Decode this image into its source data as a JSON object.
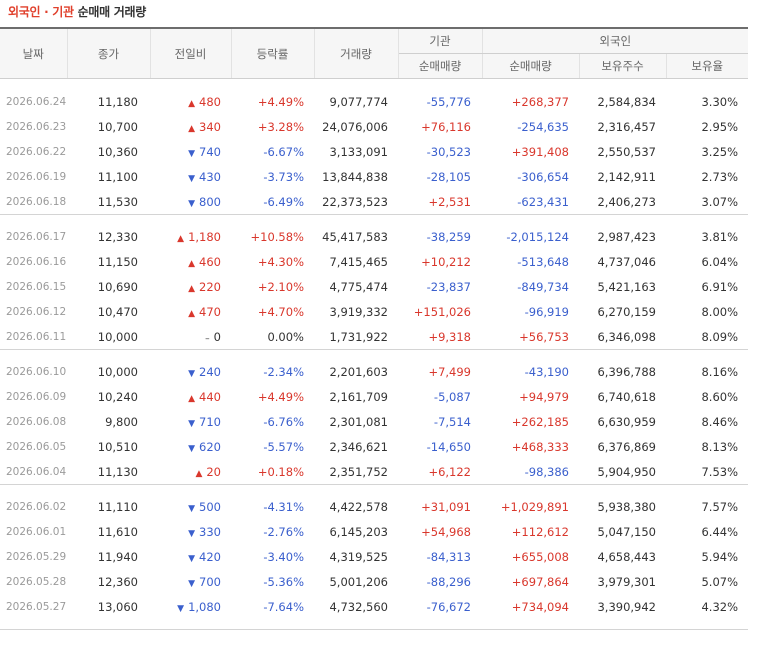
{
  "title": {
    "part1": "외국인 · 기관",
    "part2": "순매매 거래량"
  },
  "headers": {
    "date": "날짜",
    "close": "종가",
    "change": "전일비",
    "rate": "등락률",
    "volume": "거래량",
    "inst_group": "기관",
    "foreign_group": "외국인",
    "inst_net": "순매매량",
    "foreign_net": "순매매량",
    "foreign_shares": "보유주수",
    "foreign_ratio": "보유율"
  },
  "colors": {
    "up": "#d9372c",
    "down": "#3a5fcd",
    "title_accent": "#e0402c"
  },
  "icons": {
    "up": "triangle-up-icon",
    "down": "triangle-down-icon",
    "flat": "dash-icon"
  },
  "groups": [
    {
      "rows": [
        {
          "date": "2026.06.24",
          "close": "11,180",
          "dir": "up",
          "change": "480",
          "rate": "+4.49%",
          "volume": "9,077,774",
          "inst": "-55,776",
          "foreign": "+268,377",
          "shares": "2,584,834",
          "ratio": "3.30%"
        },
        {
          "date": "2026.06.23",
          "close": "10,700",
          "dir": "up",
          "change": "340",
          "rate": "+3.28%",
          "volume": "24,076,006",
          "inst": "+76,116",
          "foreign": "-254,635",
          "shares": "2,316,457",
          "ratio": "2.95%"
        },
        {
          "date": "2026.06.22",
          "close": "10,360",
          "dir": "down",
          "change": "740",
          "rate": "-6.67%",
          "volume": "3,133,091",
          "inst": "-30,523",
          "foreign": "+391,408",
          "shares": "2,550,537",
          "ratio": "3.25%"
        },
        {
          "date": "2026.06.19",
          "close": "11,100",
          "dir": "down",
          "change": "430",
          "rate": "-3.73%",
          "volume": "13,844,838",
          "inst": "-28,105",
          "foreign": "-306,654",
          "shares": "2,142,911",
          "ratio": "2.73%"
        },
        {
          "date": "2026.06.18",
          "close": "11,530",
          "dir": "down",
          "change": "800",
          "rate": "-6.49%",
          "volume": "22,373,523",
          "inst": "+2,531",
          "foreign": "-623,431",
          "shares": "2,406,273",
          "ratio": "3.07%"
        }
      ]
    },
    {
      "rows": [
        {
          "date": "2026.06.17",
          "close": "12,330",
          "dir": "up",
          "change": "1,180",
          "rate": "+10.58%",
          "volume": "45,417,583",
          "inst": "-38,259",
          "foreign": "-2,015,124",
          "shares": "2,987,423",
          "ratio": "3.81%"
        },
        {
          "date": "2026.06.16",
          "close": "11,150",
          "dir": "up",
          "change": "460",
          "rate": "+4.30%",
          "volume": "7,415,465",
          "inst": "+10,212",
          "foreign": "-513,648",
          "shares": "4,737,046",
          "ratio": "6.04%"
        },
        {
          "date": "2026.06.15",
          "close": "10,690",
          "dir": "up",
          "change": "220",
          "rate": "+2.10%",
          "volume": "4,775,474",
          "inst": "-23,837",
          "foreign": "-849,734",
          "shares": "5,421,163",
          "ratio": "6.91%"
        },
        {
          "date": "2026.06.12",
          "close": "10,470",
          "dir": "up",
          "change": "470",
          "rate": "+4.70%",
          "volume": "3,919,332",
          "inst": "+151,026",
          "foreign": "-96,919",
          "shares": "6,270,159",
          "ratio": "8.00%"
        },
        {
          "date": "2026.06.11",
          "close": "10,000",
          "dir": "flat",
          "change": "0",
          "rate": "0.00%",
          "volume": "1,731,922",
          "inst": "+9,318",
          "foreign": "+56,753",
          "shares": "6,346,098",
          "ratio": "8.09%"
        }
      ]
    },
    {
      "rows": [
        {
          "date": "2026.06.10",
          "close": "10,000",
          "dir": "down",
          "change": "240",
          "rate": "-2.34%",
          "volume": "2,201,603",
          "inst": "+7,499",
          "foreign": "-43,190",
          "shares": "6,396,788",
          "ratio": "8.16%"
        },
        {
          "date": "2026.06.09",
          "close": "10,240",
          "dir": "up",
          "change": "440",
          "rate": "+4.49%",
          "volume": "2,161,709",
          "inst": "-5,087",
          "foreign": "+94,979",
          "shares": "6,740,618",
          "ratio": "8.60%"
        },
        {
          "date": "2026.06.08",
          "close": "9,800",
          "dir": "down",
          "change": "710",
          "rate": "-6.76%",
          "volume": "2,301,081",
          "inst": "-7,514",
          "foreign": "+262,185",
          "shares": "6,630,959",
          "ratio": "8.46%"
        },
        {
          "date": "2026.06.05",
          "close": "10,510",
          "dir": "down",
          "change": "620",
          "rate": "-5.57%",
          "volume": "2,346,621",
          "inst": "-14,650",
          "foreign": "+468,333",
          "shares": "6,376,869",
          "ratio": "8.13%"
        },
        {
          "date": "2026.06.04",
          "close": "11,130",
          "dir": "up",
          "change": "20",
          "rate": "+0.18%",
          "volume": "2,351,752",
          "inst": "+6,122",
          "foreign": "-98,386",
          "shares": "5,904,950",
          "ratio": "7.53%"
        }
      ]
    },
    {
      "rows": [
        {
          "date": "2026.06.02",
          "close": "11,110",
          "dir": "down",
          "change": "500",
          "rate": "-4.31%",
          "volume": "4,422,578",
          "inst": "+31,091",
          "foreign": "+1,029,891",
          "shares": "5,938,380",
          "ratio": "7.57%"
        },
        {
          "date": "2026.06.01",
          "close": "11,610",
          "dir": "down",
          "change": "330",
          "rate": "-2.76%",
          "volume": "6,145,203",
          "inst": "+54,968",
          "foreign": "+112,612",
          "shares": "5,047,150",
          "ratio": "6.44%"
        },
        {
          "date": "2026.05.29",
          "close": "11,940",
          "dir": "down",
          "change": "420",
          "rate": "-3.40%",
          "volume": "4,319,525",
          "inst": "-84,313",
          "foreign": "+655,008",
          "shares": "4,658,443",
          "ratio": "5.94%"
        },
        {
          "date": "2026.05.28",
          "close": "12,360",
          "dir": "down",
          "change": "700",
          "rate": "-5.36%",
          "volume": "5,001,206",
          "inst": "-88,296",
          "foreign": "+697,864",
          "shares": "3,979,301",
          "ratio": "5.07%"
        },
        {
          "date": "2026.05.27",
          "close": "13,060",
          "dir": "down",
          "change": "1,080",
          "rate": "-7.64%",
          "volume": "4,732,560",
          "inst": "-76,672",
          "foreign": "+734,094",
          "shares": "3,390,942",
          "ratio": "4.32%"
        }
      ]
    }
  ]
}
